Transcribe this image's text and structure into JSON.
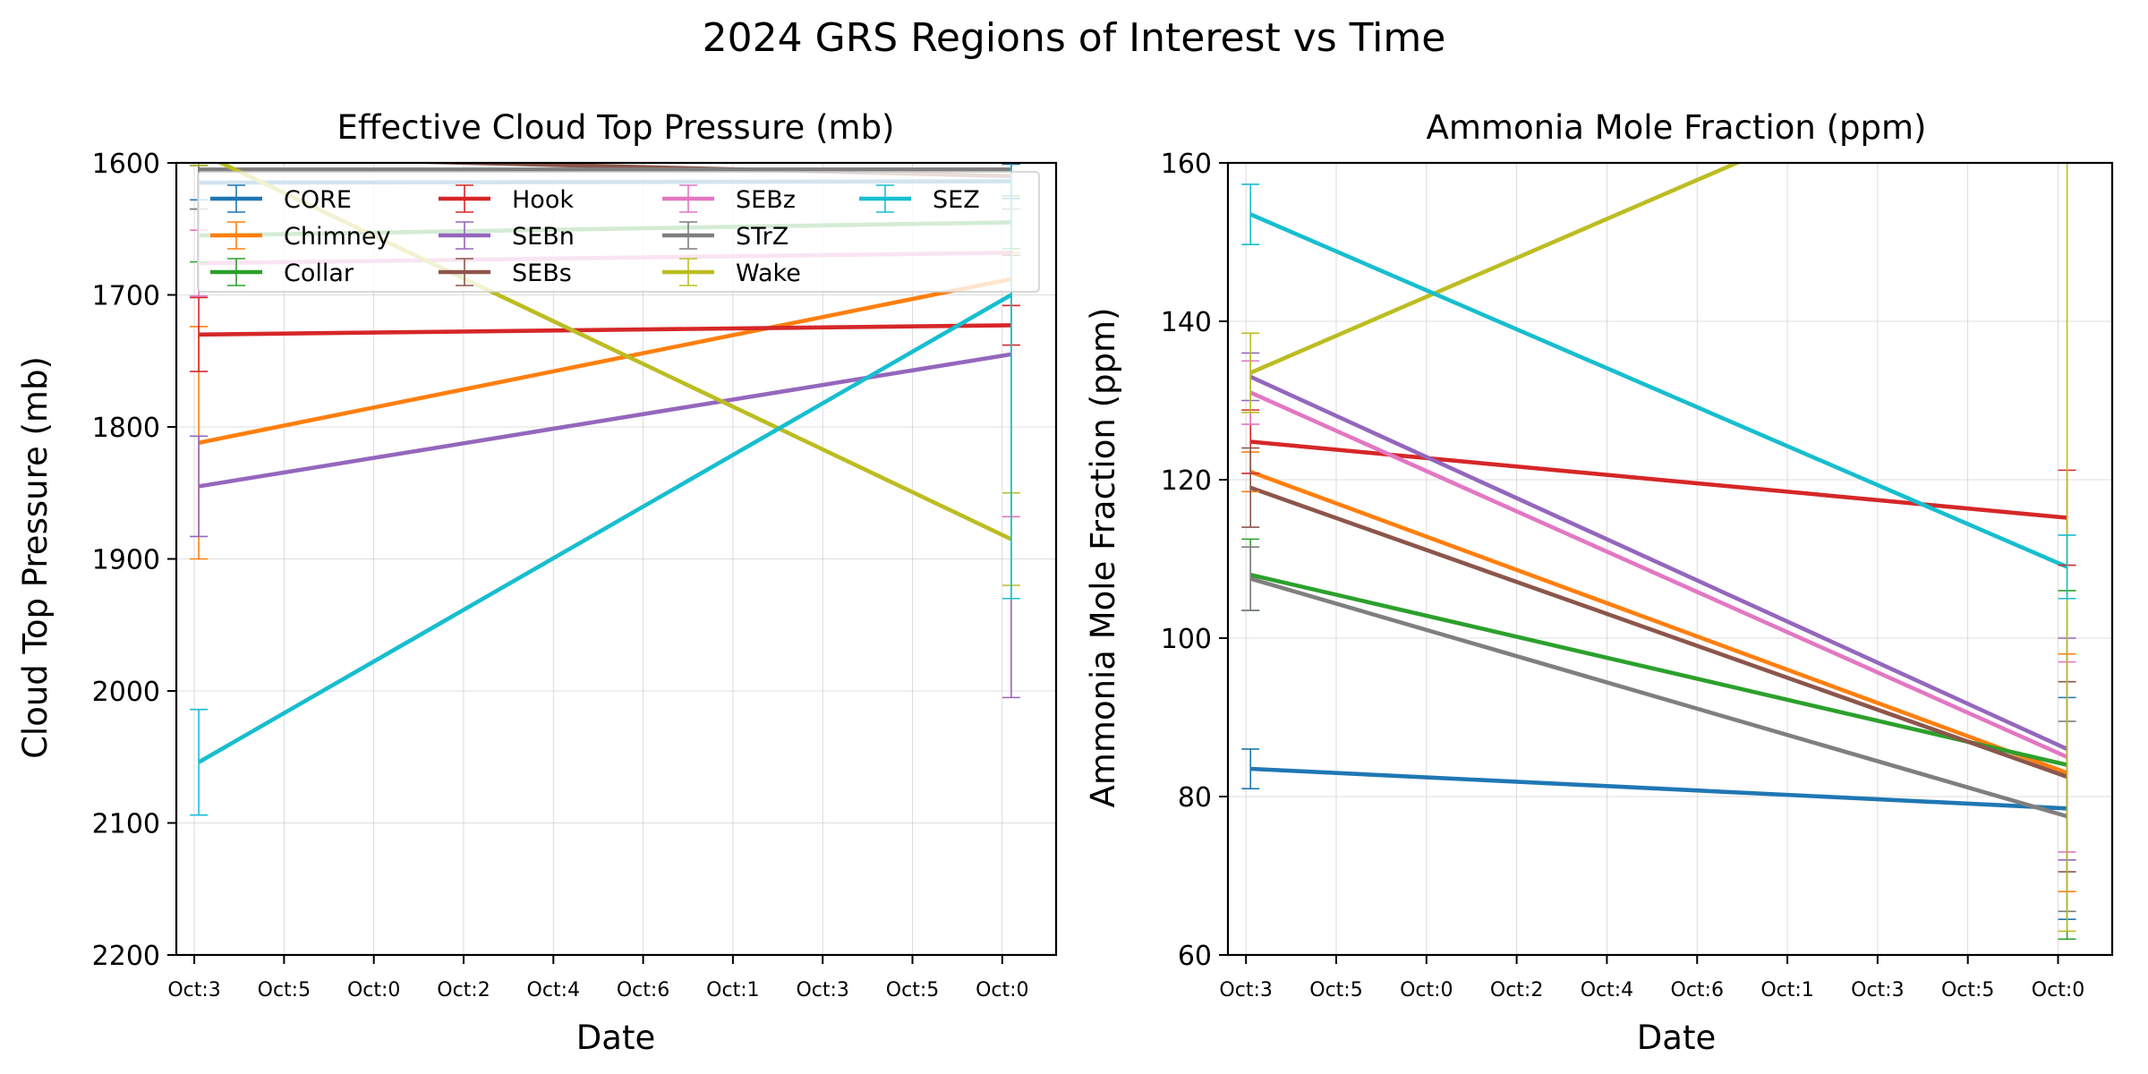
{
  "figure_title": "2024 GRS Regions of Interest vs Time",
  "colors": {
    "CORE": "#1f77b4",
    "Chimney": "#ff7f0e",
    "Collar": "#2ca02c",
    "Hook": "#d62728",
    "SEBn": "#9467bd",
    "SEBs": "#8c564b",
    "SEBz": "#e377c2",
    "STrZ": "#7f7f7f",
    "Wake": "#bcbd22",
    "SEZ": "#17becf"
  },
  "chart_data": [
    {
      "type": "line",
      "title": "Effective Cloud Top Pressure (mb)",
      "xlabel": "Date",
      "ylabel": "Cloud Top Pressure (mb)",
      "ylim": [
        2200,
        1600
      ],
      "y_inverted": true,
      "yticks": [
        1600,
        1700,
        1800,
        1900,
        2000,
        2100,
        2200
      ],
      "xlim": [
        -0.2,
        9.6
      ],
      "xtick_labels": [
        "Oct:3",
        "Oct:5",
        "Oct:0",
        "Oct:2",
        "Oct:4",
        "Oct:6",
        "Oct:1",
        "Oct:3",
        "Oct:5",
        "Oct:0"
      ],
      "legend": {
        "placement": "top",
        "columns": 4,
        "entries": [
          "CORE",
          "Chimney",
          "Collar",
          "Hook",
          "SEBn",
          "SEBs",
          "SEBz",
          "STrZ",
          "Wake",
          "SEZ"
        ]
      },
      "series": [
        {
          "name": "CORE",
          "x": [
            0.05,
            9.1
          ],
          "y": [
            1615,
            1614
          ],
          "err": [
            13,
            13
          ]
        },
        {
          "name": "Chimney",
          "x": [
            0.05,
            9.1
          ],
          "y": [
            1812,
            1688
          ],
          "err": [
            88,
            20
          ]
        },
        {
          "name": "Collar",
          "x": [
            0.05,
            9.1
          ],
          "y": [
            1655,
            1645
          ],
          "err": [
            20,
            20
          ]
        },
        {
          "name": "Hook",
          "x": [
            0.05,
            9.1
          ],
          "y": [
            1730,
            1723
          ],
          "err": [
            28,
            15
          ]
        },
        {
          "name": "SEBn",
          "x": [
            0.05,
            9.1
          ],
          "y": [
            1845,
            1745
          ],
          "err": [
            38,
            260
          ]
        },
        {
          "name": "SEBs",
          "x": [
            0.05,
            9.1
          ],
          "y": [
            1595,
            1610
          ],
          "err": [
            40,
            60
          ]
        },
        {
          "name": "SEBz",
          "x": [
            0.05,
            9.1
          ],
          "y": [
            1676,
            1668
          ],
          "err": [
            25,
            200
          ]
        },
        {
          "name": "STrZ",
          "x": [
            0.05,
            9.1
          ],
          "y": [
            1605,
            1605
          ],
          "err": [
            30,
            30
          ]
        },
        {
          "name": "Wake",
          "x": [
            0.05,
            9.1
          ],
          "y": [
            1592,
            1885
          ],
          "err": [
            10,
            35
          ]
        },
        {
          "name": "SEZ",
          "x": [
            0.05,
            9.1
          ],
          "y": [
            2054,
            1700
          ],
          "err": [
            40,
            230
          ]
        }
      ]
    },
    {
      "type": "line",
      "title": "Ammonia Mole Fraction (ppm)",
      "xlabel": "Date",
      "ylabel": "Ammonia Mole Fraction (ppm)",
      "ylim": [
        60,
        160
      ],
      "yticks": [
        60,
        80,
        100,
        120,
        140,
        160
      ],
      "xlim": [
        -0.2,
        9.6
      ],
      "xtick_labels": [
        "Oct:3",
        "Oct:5",
        "Oct:0",
        "Oct:2",
        "Oct:4",
        "Oct:6",
        "Oct:1",
        "Oct:3",
        "Oct:5",
        "Oct:0"
      ],
      "series": [
        {
          "name": "CORE",
          "x": [
            0.05,
            9.1
          ],
          "y": [
            83.5,
            78.5
          ],
          "err": [
            2.5,
            14
          ]
        },
        {
          "name": "Chimney",
          "x": [
            0.05,
            9.1
          ],
          "y": [
            121,
            83
          ],
          "err": [
            2.5,
            15
          ]
        },
        {
          "name": "Collar",
          "x": [
            0.05,
            9.1
          ],
          "y": [
            108,
            84
          ],
          "err": [
            4.5,
            22
          ]
        },
        {
          "name": "Hook",
          "x": [
            0.05,
            9.1
          ],
          "y": [
            124.8,
            115.2
          ],
          "err": [
            4,
            6
          ]
        },
        {
          "name": "SEBn",
          "x": [
            0.05,
            9.1
          ],
          "y": [
            133,
            86
          ],
          "err": [
            3,
            14
          ]
        },
        {
          "name": "SEBs",
          "x": [
            0.05,
            9.1
          ],
          "y": [
            119,
            82.5
          ],
          "err": [
            5,
            12
          ]
        },
        {
          "name": "SEBz",
          "x": [
            0.05,
            9.1
          ],
          "y": [
            131,
            85
          ],
          "err": [
            4,
            12
          ]
        },
        {
          "name": "STrZ",
          "x": [
            0.05,
            9.1
          ],
          "y": [
            107.5,
            77.5
          ],
          "err": [
            4,
            12
          ]
        },
        {
          "name": "Wake",
          "x": [
            0.05,
            9.1
          ],
          "y": [
            133.5,
            178
          ],
          "err": [
            5,
            115
          ]
        },
        {
          "name": "SEZ",
          "x": [
            0.05,
            9.1
          ],
          "y": [
            153.5,
            109
          ],
          "err": [
            3.8,
            4
          ]
        }
      ]
    }
  ]
}
